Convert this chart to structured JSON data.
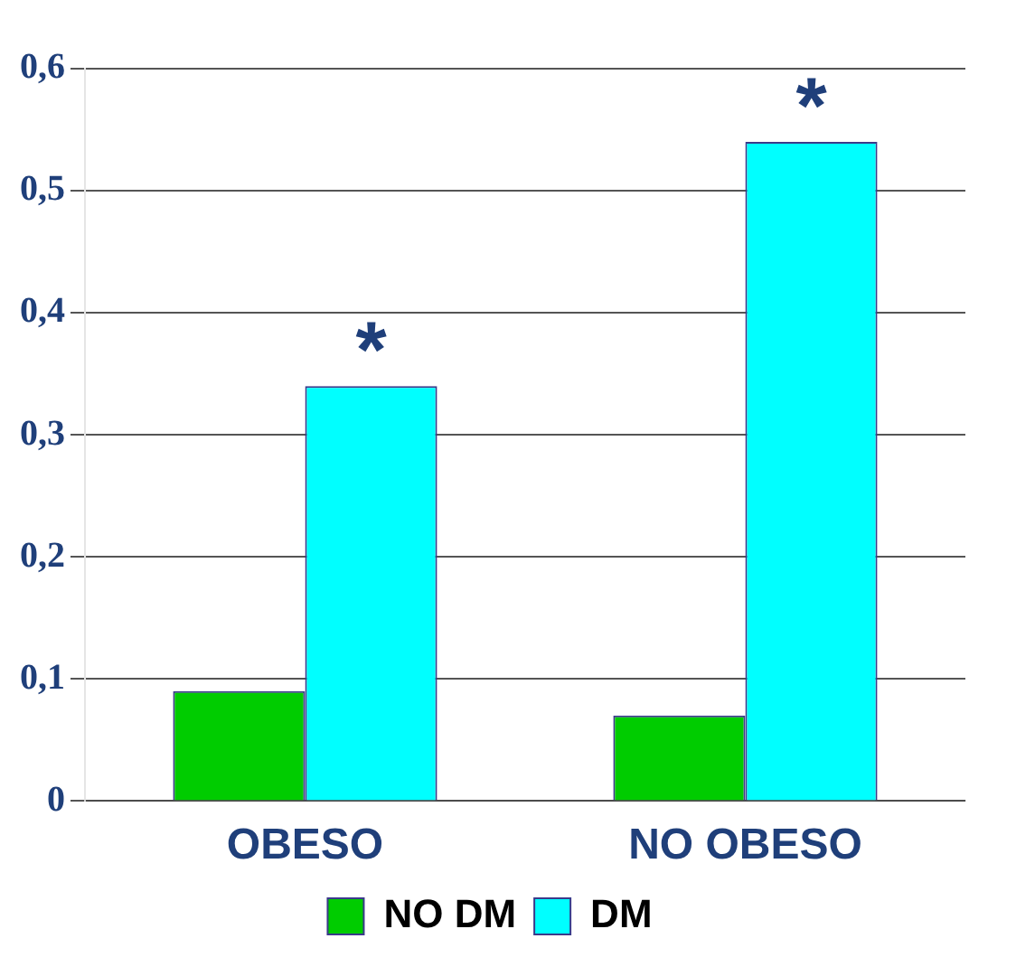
{
  "chart_data": {
    "type": "bar",
    "categories": [
      "OBESO",
      "NO OBESO"
    ],
    "series": [
      {
        "name": "NO DM",
        "color": "#00cc00",
        "values": [
          0.09,
          0.07
        ]
      },
      {
        "name": "DM",
        "color": "#00ffff",
        "values": [
          0.34,
          0.54
        ]
      }
    ],
    "ylim": [
      0,
      0.6
    ],
    "yticks": [
      0,
      {
        "value": 0.1,
        "label": "0,1"
      },
      {
        "value": 0.2,
        "label": "0,2"
      },
      {
        "value": 0.3,
        "label": "0,3"
      },
      {
        "value": 0.4,
        "label": "0,4"
      },
      {
        "value": 0.5,
        "label": "0,5"
      },
      {
        "value": 0.6,
        "label": "0,6"
      }
    ],
    "grid": "y",
    "legend": "bottom",
    "annotations": [
      {
        "text": "*",
        "x": "OBESO",
        "y": 0.34
      },
      {
        "text": "*",
        "x": "NO OBESO",
        "y": 0.54
      }
    ]
  }
}
